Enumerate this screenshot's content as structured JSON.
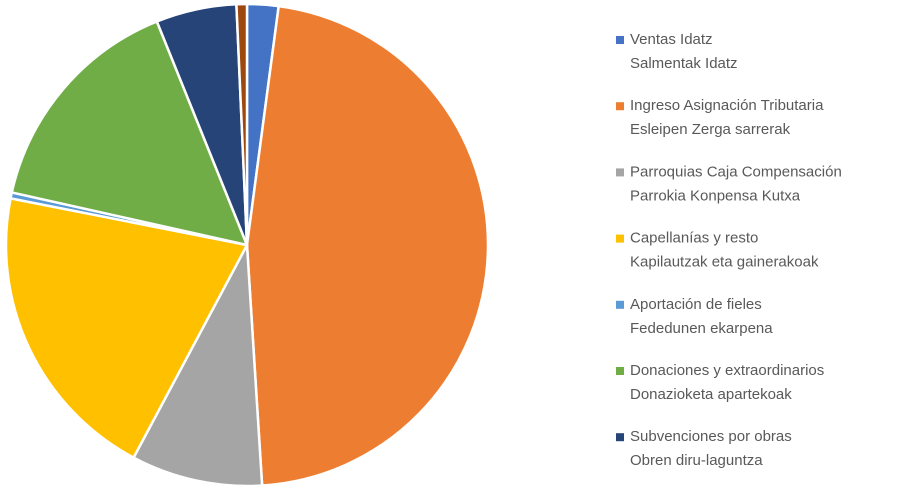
{
  "chart_data": {
    "type": "pie",
    "categories": [
      [
        "Ventas Idatz",
        "Salmentak Idatz"
      ],
      [
        "Ingreso Asignación Tributaria",
        "Esleipen Zerga sarrerak"
      ],
      [
        "Parroquias Caja Compensación",
        "Parrokia Konpensa Kutxa"
      ],
      [
        "Capellanías y resto",
        "Kapilautzak eta gainerakoak"
      ],
      [
        "Aportación de fieles",
        "Fededunen ekarpena"
      ],
      [
        "Donaciones y extraordinarios",
        "Donazioketa apartekoak"
      ],
      [
        "Subvenciones por obras",
        "Obren diru-laguntza"
      ],
      null
    ],
    "values": [
      2.1,
      46.9,
      8.8,
      20.3,
      0.4,
      15.4,
      5.4,
      0.7
    ],
    "colors": [
      "#4472c4",
      "#ed7d31",
      "#a5a5a5",
      "#ffc000",
      "#5b9bd5",
      "#70ad47",
      "#264478",
      "#9e480e"
    ],
    "legend": "right"
  }
}
